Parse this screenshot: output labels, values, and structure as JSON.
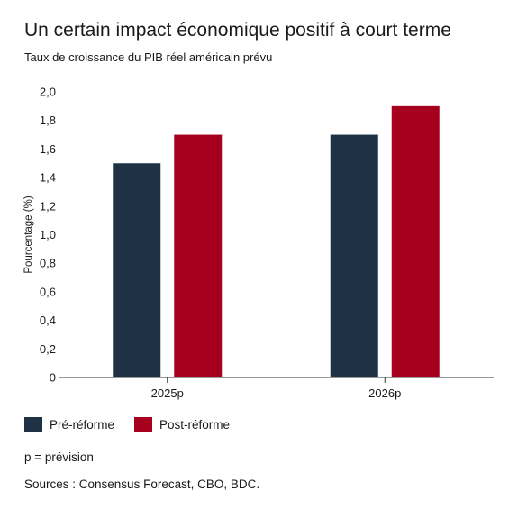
{
  "colors": {
    "pre": "#1f3245",
    "post": "#a6001e",
    "axis": "#333333"
  },
  "chart_data": {
    "type": "bar",
    "title": "Un certain impact économique positif à court terme",
    "subtitle": "Taux de croissance du PIB réel américain prévu",
    "ylabel": "Pourcentage (%)",
    "xlabel": "",
    "categories": [
      "2025p",
      "2026p"
    ],
    "series": [
      {
        "name": "Pré-réforme",
        "values": [
          1.5,
          1.7
        ]
      },
      {
        "name": "Post-réforme",
        "values": [
          1.7,
          1.9
        ]
      }
    ],
    "ylim": [
      0,
      2.0
    ],
    "yticks": [
      "0",
      "0,2",
      "0,4",
      "0,6",
      "0,8",
      "1,0",
      "1,2",
      "1,4",
      "1,6",
      "1,8",
      "2,0"
    ],
    "grid": false,
    "legend": "bottom-left"
  },
  "note": "p = prévision",
  "sources": "Sources : Consensus Forecast, CBO, BDC."
}
